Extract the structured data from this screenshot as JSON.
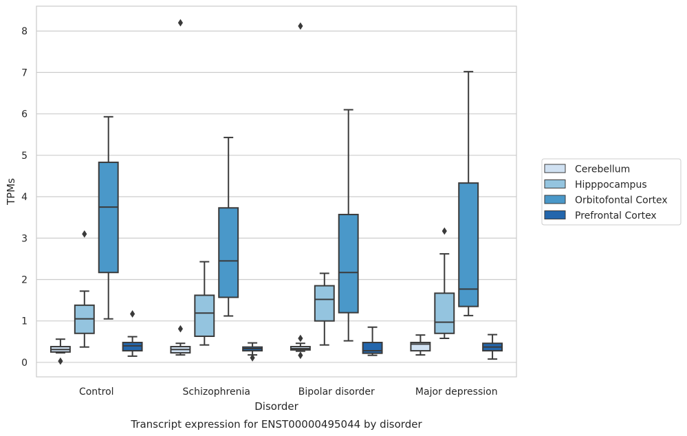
{
  "chart_data": {
    "type": "box",
    "title": "",
    "caption": "Transcript expression for ENST00000495044 by disorder",
    "xlabel": "Disorder",
    "ylabel": "TPMs",
    "ylim": [
      -0.35,
      8.6
    ],
    "yticks": [
      0,
      1,
      2,
      3,
      4,
      5,
      6,
      7,
      8
    ],
    "grid": true,
    "legend_placement": "right",
    "categories": [
      "Control",
      "Schizophrenia",
      "Bipolar disorder",
      "Major depression"
    ],
    "series": [
      {
        "name": "Cerebellum",
        "color": "#d0e1f2",
        "boxes": [
          {
            "whislo": 0.23,
            "q1": 0.25,
            "med": 0.31,
            "q3": 0.38,
            "whishi": 0.56,
            "fliers": [
              0.03
            ]
          },
          {
            "whislo": 0.18,
            "q1": 0.23,
            "med": 0.31,
            "q3": 0.38,
            "whishi": 0.46,
            "fliers": [
              0.81,
              8.2
            ]
          },
          {
            "whislo": 0.27,
            "q1": 0.3,
            "med": 0.33,
            "q3": 0.38,
            "whishi": 0.46,
            "fliers": [
              0.17,
              0.58,
              8.12
            ]
          },
          {
            "whislo": 0.18,
            "q1": 0.28,
            "med": 0.44,
            "q3": 0.48,
            "whishi": 0.66,
            "fliers": []
          }
        ]
      },
      {
        "name": "Hipppocampus",
        "color": "#94c4df",
        "boxes": [
          {
            "whislo": 0.37,
            "q1": 0.7,
            "med": 1.05,
            "q3": 1.38,
            "whishi": 1.72,
            "fliers": [
              3.1
            ]
          },
          {
            "whislo": 0.42,
            "q1": 0.63,
            "med": 1.19,
            "q3": 1.62,
            "whishi": 2.43,
            "fliers": []
          },
          {
            "whislo": 0.42,
            "q1": 1.0,
            "med": 1.52,
            "q3": 1.85,
            "whishi": 2.15,
            "fliers": []
          },
          {
            "whislo": 0.58,
            "q1": 0.7,
            "med": 0.97,
            "q3": 1.67,
            "whishi": 2.62,
            "fliers": [
              3.17
            ]
          }
        ]
      },
      {
        "name": "Orbitofontal Cortex",
        "color": "#4a98c9",
        "boxes": [
          {
            "whislo": 1.05,
            "q1": 2.17,
            "med": 3.75,
            "q3": 4.83,
            "whishi": 5.93,
            "fliers": []
          },
          {
            "whislo": 1.12,
            "q1": 1.57,
            "med": 2.45,
            "q3": 3.73,
            "whishi": 5.43,
            "fliers": []
          },
          {
            "whislo": 0.52,
            "q1": 1.2,
            "med": 2.17,
            "q3": 3.57,
            "whishi": 6.1,
            "fliers": []
          },
          {
            "whislo": 1.13,
            "q1": 1.35,
            "med": 1.77,
            "q3": 4.33,
            "whishi": 7.02,
            "fliers": []
          }
        ]
      },
      {
        "name": "Prefrontal Cortex",
        "color": "#2366ac",
        "boxes": [
          {
            "whislo": 0.15,
            "q1": 0.28,
            "med": 0.4,
            "q3": 0.48,
            "whishi": 0.62,
            "fliers": [
              1.17
            ]
          },
          {
            "whislo": 0.18,
            "q1": 0.28,
            "med": 0.33,
            "q3": 0.37,
            "whishi": 0.47,
            "fliers": [
              0.11
            ]
          },
          {
            "whislo": 0.17,
            "q1": 0.22,
            "med": 0.28,
            "q3": 0.48,
            "whishi": 0.85,
            "fliers": []
          },
          {
            "whislo": 0.08,
            "q1": 0.28,
            "med": 0.37,
            "q3": 0.46,
            "whishi": 0.67,
            "fliers": []
          }
        ]
      }
    ]
  }
}
